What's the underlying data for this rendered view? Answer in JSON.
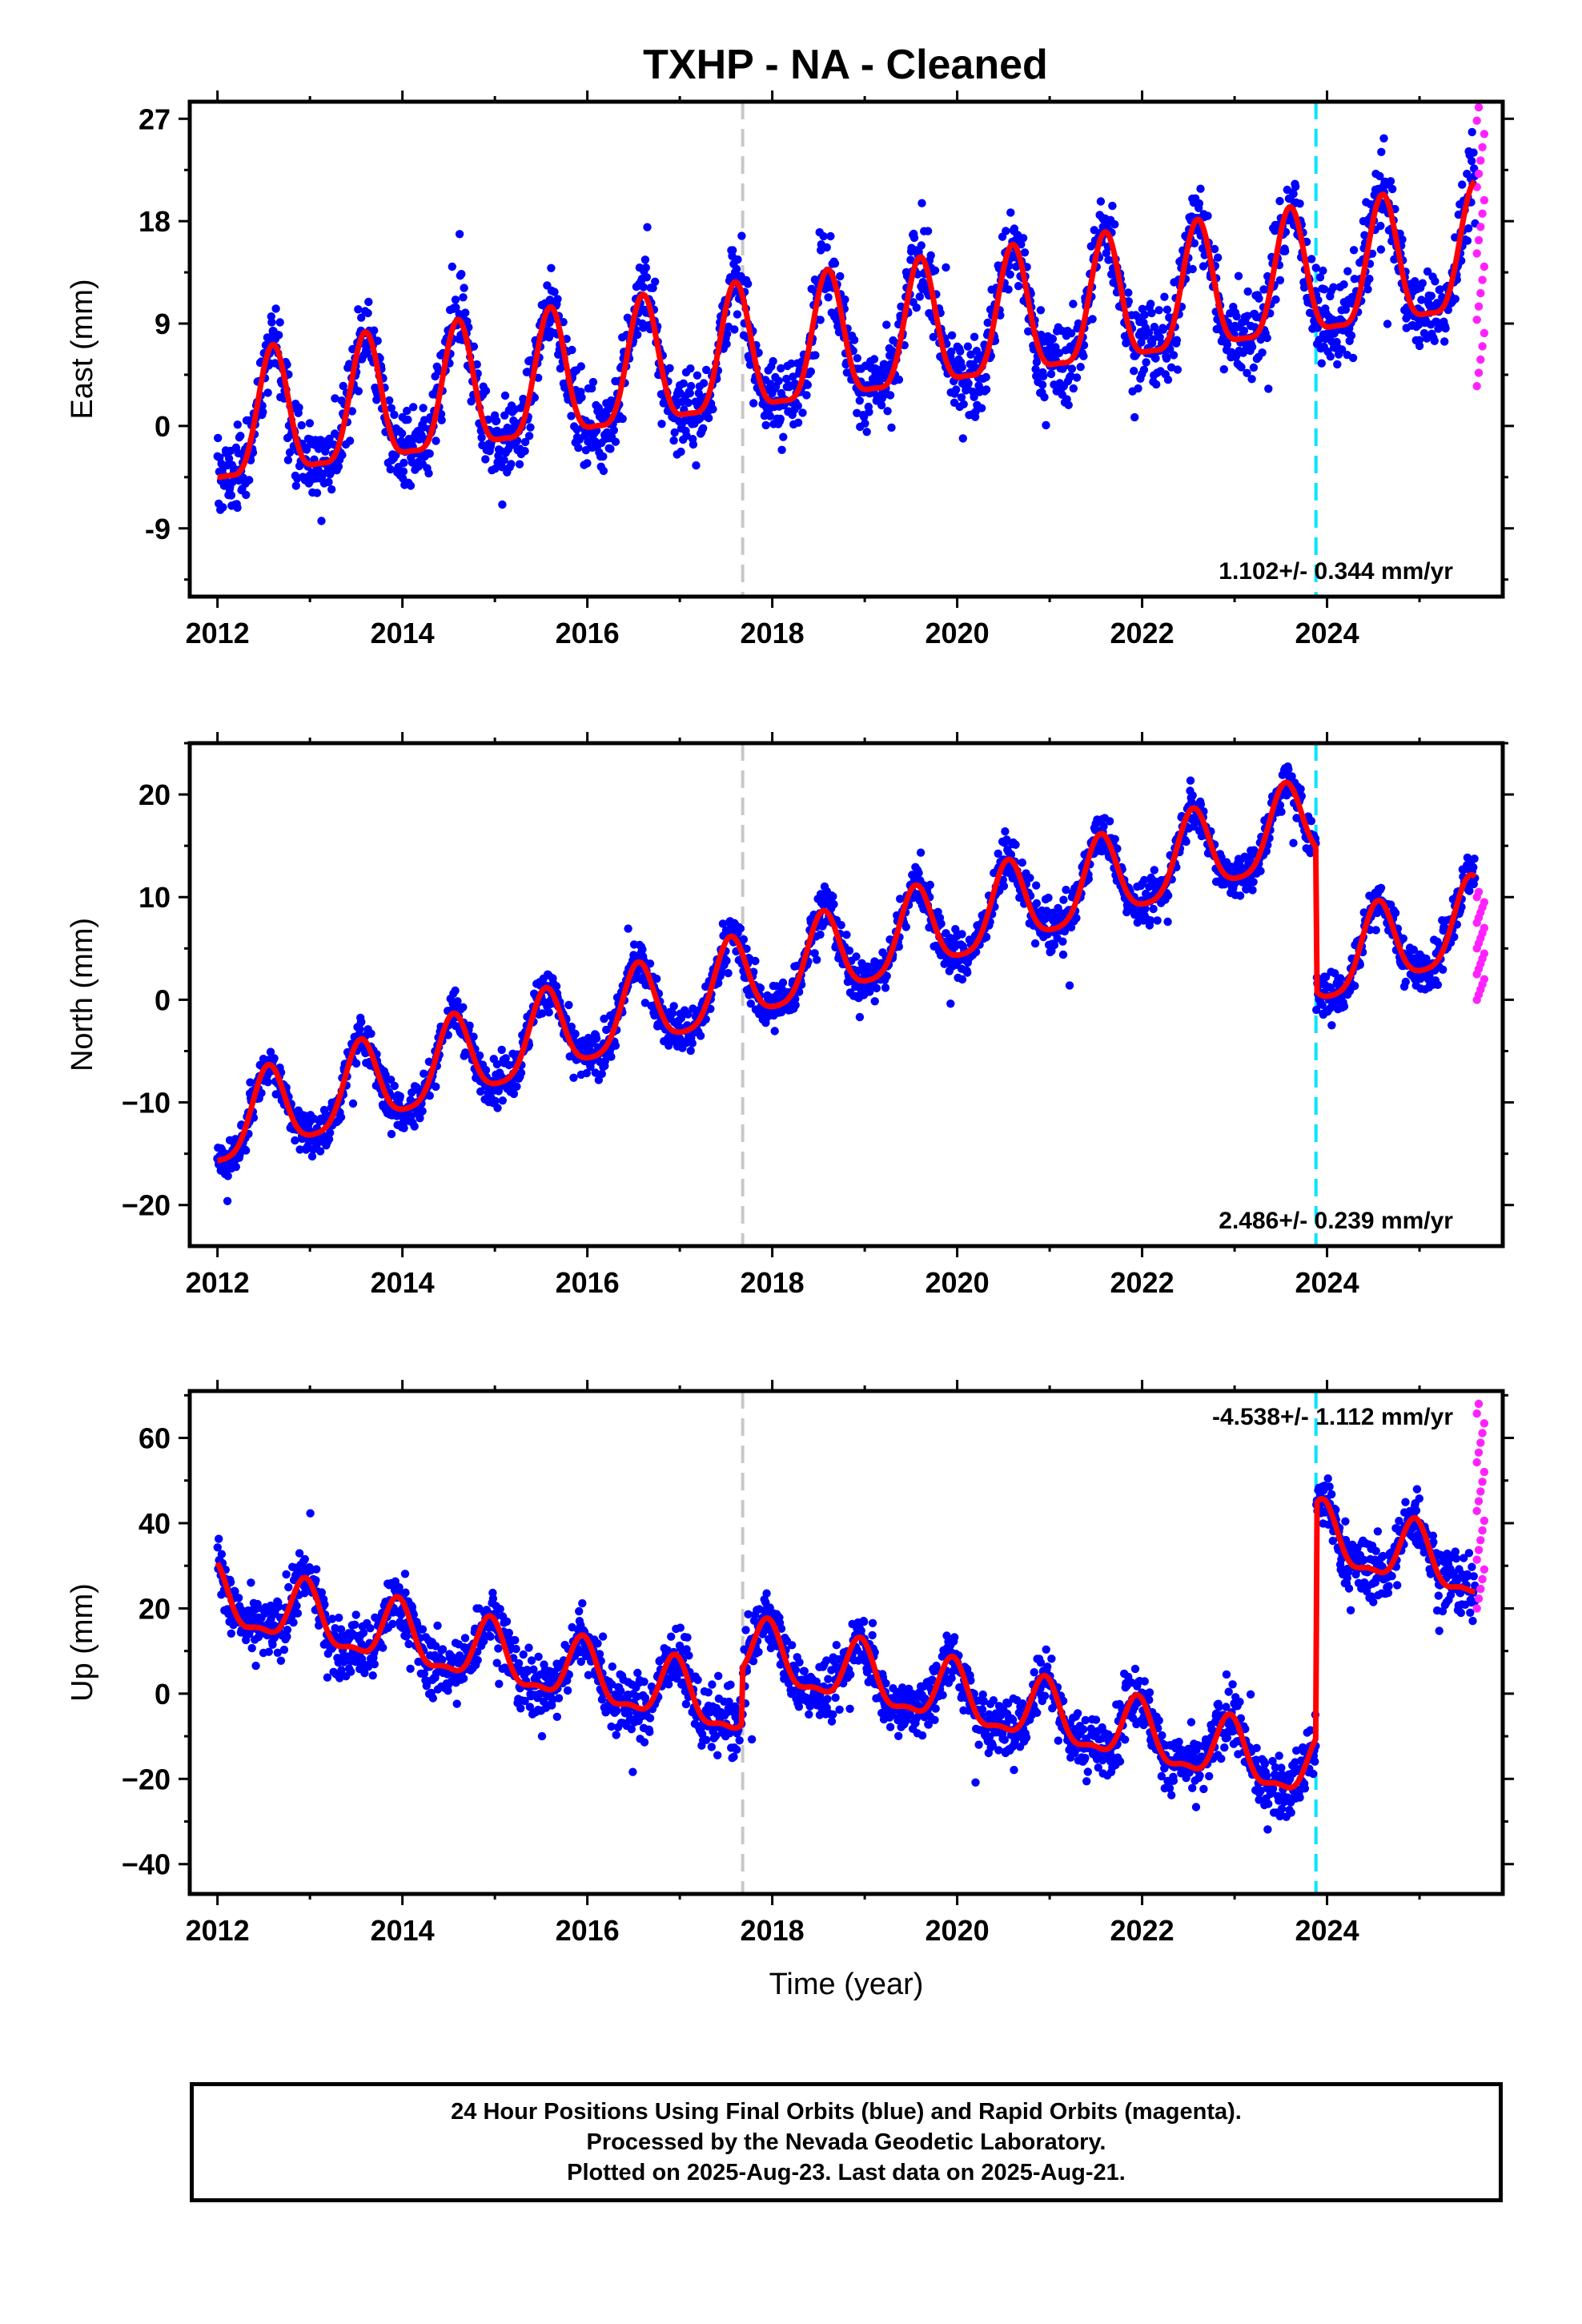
{
  "title": "TXHP  - NA - Cleaned",
  "colors": {
    "final_orbits": "#0000ff",
    "rapid_orbits": "#ff22ff",
    "model": "#ff0000",
    "gray_marker": "#c8c8c8",
    "cyan_marker": "#00e5ff"
  },
  "chart_data": [
    {
      "type": "scatter",
      "panel": "east",
      "ylabel": "East (mm)",
      "xlabel": "",
      "xlim": [
        2011.7,
        2025.9
      ],
      "ylim": [
        -15,
        28.5
      ],
      "x_ticks": [
        2012,
        2014,
        2016,
        2018,
        2020,
        2022,
        2024
      ],
      "x_tick_labels": [
        "2012",
        "2014",
        "2016",
        "2018",
        "2020",
        "2022",
        "2024"
      ],
      "y_ticks": [
        -9,
        0,
        9,
        18,
        27
      ],
      "y_tick_labels": [
        "-9",
        "0",
        "9",
        "18",
        "27"
      ],
      "rate_label": "1.102+/- 0.344 mm/yr",
      "rate_position": "bottom-right",
      "markers": [
        {
          "x": 2017.68,
          "color": "gray"
        },
        {
          "x": 2023.88,
          "color": "cyan"
        }
      ],
      "trend_model": {
        "start": 2012.0,
        "end": 2025.6,
        "offset": -0.5,
        "rate": 1.1,
        "annual_amp": 5.5,
        "semiannual_amp": 1.5,
        "phase": 2012.6,
        "steps": []
      },
      "series": [
        {
          "name": "Final Orbits",
          "color": "blue",
          "x_range": [
            2012.0,
            2025.6
          ],
          "scatter": 4.5
        },
        {
          "name": "Rapid Orbits",
          "color": "magenta",
          "x": [
            2025.62,
            2025.64,
            2025.66,
            2025.68,
            2025.7
          ],
          "y_range": [
            3.5,
            28
          ]
        }
      ]
    },
    {
      "type": "scatter",
      "panel": "north",
      "ylabel": "North (mm)",
      "xlabel": "",
      "xlim": [
        2011.7,
        2025.9
      ],
      "ylim": [
        -24,
        25
      ],
      "x_ticks": [
        2012,
        2014,
        2016,
        2018,
        2020,
        2022,
        2024
      ],
      "x_tick_labels": [
        "2012",
        "2014",
        "2016",
        "2018",
        "2020",
        "2022",
        "2024"
      ],
      "y_ticks": [
        -20,
        -10,
        0,
        10,
        20
      ],
      "y_tick_labels": [
        "−20",
        "−10",
        "0",
        "10",
        "20"
      ],
      "rate_label": "2.486+/- 0.239 mm/yr",
      "rate_position": "bottom-right",
      "markers": [
        {
          "x": 2017.68,
          "color": "gray"
        },
        {
          "x": 2023.88,
          "color": "cyan"
        }
      ],
      "trend_model": {
        "start": 2012.0,
        "end": 2025.6,
        "offset": -12.5,
        "rate": 2.5,
        "annual_amp": 4.0,
        "semiannual_amp": 0.8,
        "phase": 2012.55,
        "steps": [
          {
            "x": 2023.88,
            "dy": -14
          }
        ]
      },
      "series": [
        {
          "name": "Final Orbits",
          "color": "blue",
          "x_range": [
            2012.0,
            2025.6
          ],
          "scatter": 2.8
        },
        {
          "name": "Rapid Orbits",
          "color": "magenta",
          "x": [
            2025.62,
            2025.64,
            2025.66,
            2025.68,
            2025.7
          ],
          "y_range": [
            0,
            10.5
          ]
        }
      ]
    },
    {
      "type": "scatter",
      "panel": "up",
      "ylabel": "Up (mm)",
      "xlabel": "Time (year)",
      "xlim": [
        2011.7,
        2025.9
      ],
      "ylim": [
        -47,
        71
      ],
      "x_ticks": [
        2012,
        2014,
        2016,
        2018,
        2020,
        2022,
        2024
      ],
      "x_tick_labels": [
        "2012",
        "2014",
        "2016",
        "2018",
        "2020",
        "2022",
        "2024"
      ],
      "y_ticks": [
        -40,
        -20,
        0,
        20,
        40,
        60
      ],
      "y_tick_labels": [
        "−40",
        "−20",
        "0",
        "20",
        "40",
        "60"
      ],
      "rate_label": "-4.538+/- 1.112 mm/yr",
      "rate_position": "top-right",
      "markers": [
        {
          "x": 2017.68,
          "color": "gray"
        },
        {
          "x": 2023.88,
          "color": "cyan"
        }
      ],
      "trend_model": {
        "start": 2012.0,
        "end": 2025.6,
        "offset": 22,
        "rate": -4.5,
        "annual_amp": 7.0,
        "semiannual_amp": 2.5,
        "phase": 2012.95,
        "steps": [
          {
            "x": 2017.68,
            "dy": 13
          },
          {
            "x": 2023.88,
            "dy": 55
          }
        ]
      },
      "series": [
        {
          "name": "Final Orbits",
          "color": "blue",
          "x_range": [
            2012.0,
            2025.6
          ],
          "scatter": 9
        },
        {
          "name": "Rapid Orbits",
          "color": "magenta",
          "x": [
            2025.62,
            2025.64,
            2025.66,
            2025.68,
            2025.7
          ],
          "y_range": [
            20,
            68
          ]
        }
      ]
    }
  ],
  "footer": {
    "line1": "24 Hour Positions Using Final Orbits (blue) and Rapid Orbits (magenta).",
    "line2": "Processed by the Nevada Geodetic Laboratory.",
    "line3": "Plotted on 2025-Aug-23. Last data on 2025-Aug-21."
  }
}
